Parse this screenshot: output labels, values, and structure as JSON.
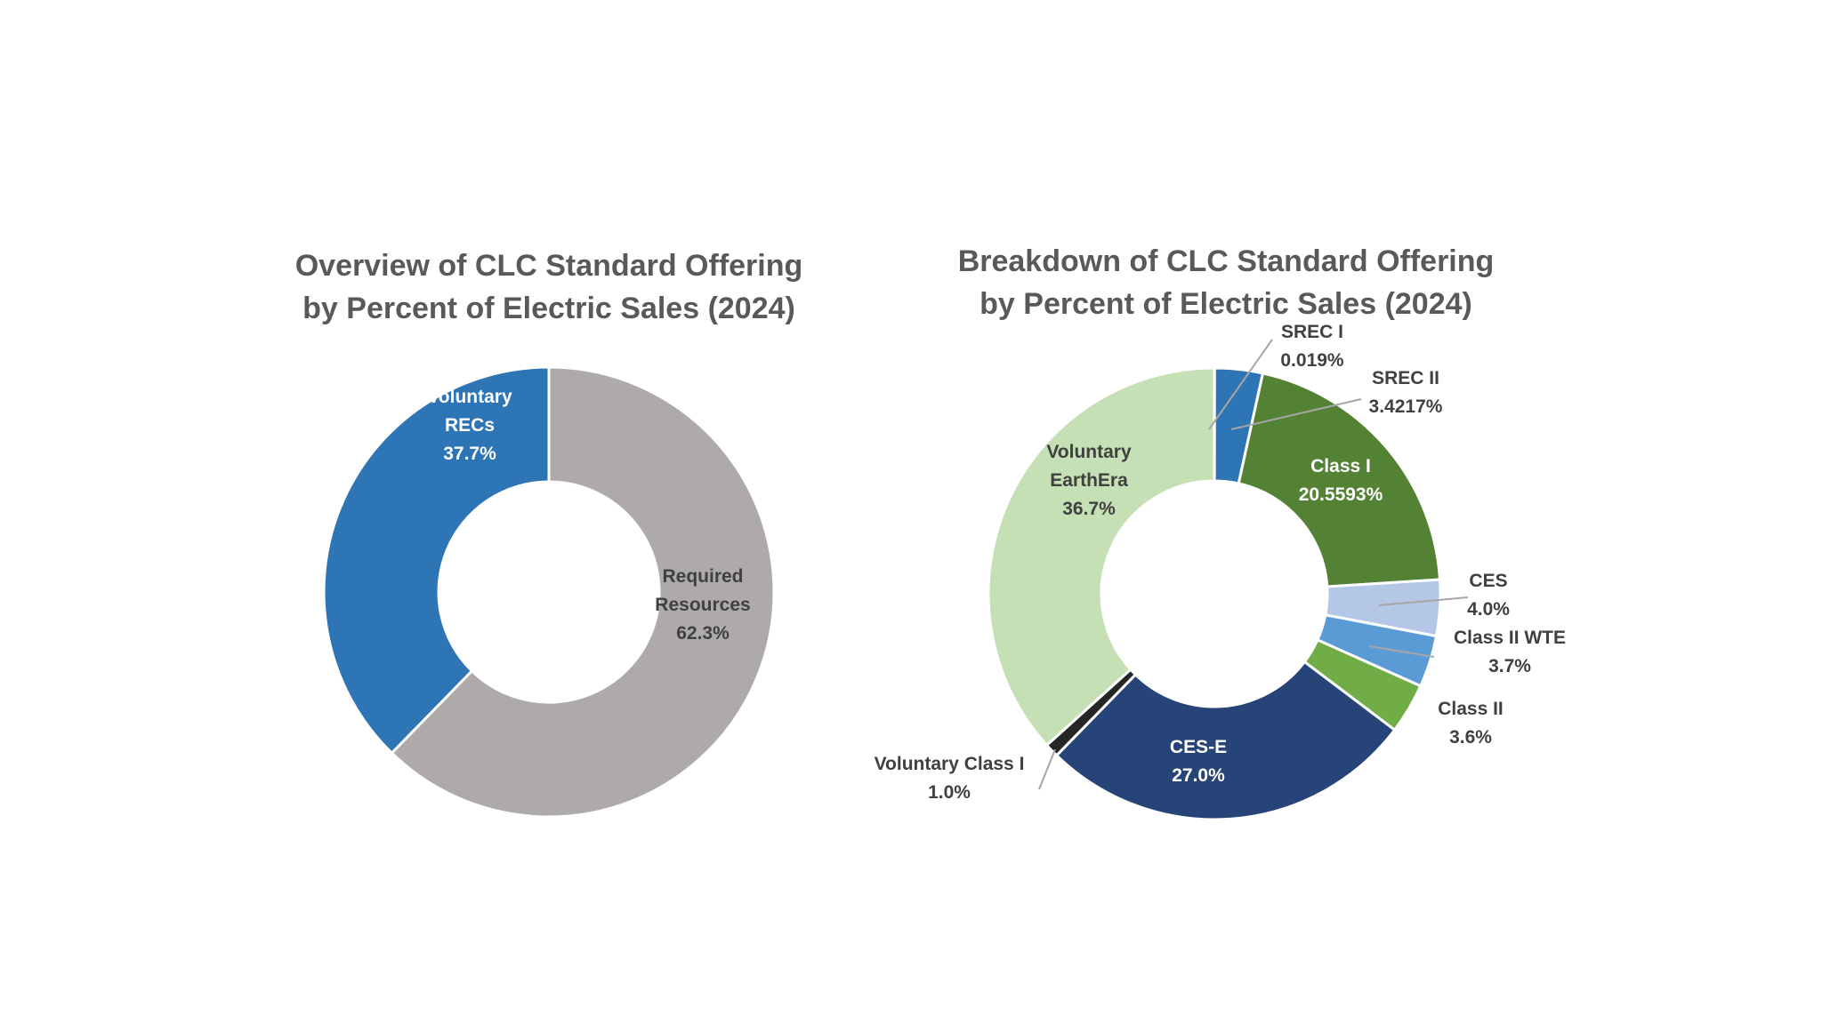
{
  "chart_data": [
    {
      "type": "pie",
      "donut": true,
      "title_lines": [
        "Overview of CLC Standard Offering",
        "by Percent of Electric Sales (2024)"
      ],
      "slices": [
        {
          "label_lines": [
            "Required",
            "Resources"
          ],
          "value": 62.3,
          "value_label": "62.3%",
          "color": "#aeaaaa",
          "text_color": "#404040"
        },
        {
          "label_lines": [
            "Voluntary",
            "RECs"
          ],
          "value": 37.7,
          "value_label": "37.7%",
          "color": "#2e75b6",
          "text_color": "#ffffff"
        }
      ]
    },
    {
      "type": "pie",
      "donut": true,
      "title_lines": [
        "Breakdown of CLC Standard Offering",
        "by Percent of Electric Sales (2024)"
      ],
      "slices": [
        {
          "label_lines": [
            "SREC I"
          ],
          "value": 0.019,
          "value_label": "0.019%",
          "color": "#1f4e79",
          "text_color": "#404040"
        },
        {
          "label_lines": [
            "SREC II"
          ],
          "value": 3.4217,
          "value_label": "3.4217%",
          "color": "#2e75b6",
          "text_color": "#404040"
        },
        {
          "label_lines": [
            "Class I"
          ],
          "value": 20.5593,
          "value_label": "20.5593%",
          "color": "#548235",
          "text_color": "#ffffff"
        },
        {
          "label_lines": [
            "CES"
          ],
          "value": 4.0,
          "value_label": "4.0%",
          "color": "#b4c7e7",
          "text_color": "#404040"
        },
        {
          "label_lines": [
            "Class II WTE"
          ],
          "value": 3.7,
          "value_label": "3.7%",
          "color": "#5b9bd5",
          "text_color": "#404040"
        },
        {
          "label_lines": [
            "Class II"
          ],
          "value": 3.6,
          "value_label": "3.6%",
          "color": "#70ad47",
          "text_color": "#404040"
        },
        {
          "label_lines": [
            "CES-E"
          ],
          "value": 27.0,
          "value_label": "27.0%",
          "color": "#264478",
          "text_color": "#ffffff"
        },
        {
          "label_lines": [
            "Voluntary Class I"
          ],
          "value": 1.0,
          "value_label": "1.0%",
          "color": "#262626",
          "text_color": "#404040"
        },
        {
          "label_lines": [
            "Voluntary",
            "EarthEra"
          ],
          "value": 36.7,
          "value_label": "36.7%",
          "color": "#c5e0b4",
          "text_color": "#404040"
        }
      ]
    }
  ]
}
